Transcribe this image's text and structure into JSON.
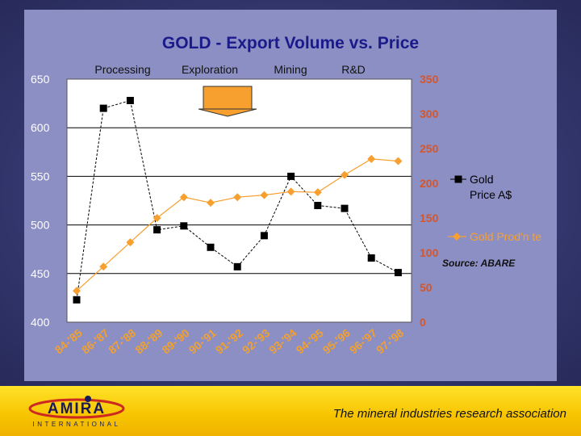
{
  "footer": {
    "tagline": "The mineral industries research association"
  },
  "logo": {
    "name": "AMIRA",
    "subtitle": "INTERNATIONAL"
  },
  "colors": {
    "gold_price": "#000000",
    "production": "#f7a030",
    "panel": "#8c8fc4",
    "arrow": "#f7a030"
  },
  "chart_data": {
    "type": "line",
    "title": "GOLD - Export Volume vs. Price",
    "categories": [
      "84-'85",
      "86-'87",
      "87-'88",
      "88-'89",
      "89-'90",
      "90-'91",
      "91-'92",
      "92-'93",
      "93-'94",
      "94-'95",
      "95-'96",
      "96-'97",
      "97-'98"
    ],
    "stage_labels": [
      "Processing",
      "Exploration",
      "Mining",
      "R&D"
    ],
    "source_note": "Source: ABARE",
    "y_left": {
      "ticks": [
        "400",
        "450",
        "500",
        "550",
        "600",
        "650"
      ],
      "range": [
        400,
        650
      ]
    },
    "y_right": {
      "ticks": [
        "0",
        "50",
        "100",
        "150",
        "200",
        "250",
        "300",
        "350"
      ],
      "range": [
        0,
        350
      ]
    },
    "series": [
      {
        "name": "Gold Price A$",
        "axis": "left",
        "marker": "square",
        "color": "#000000",
        "values": [
          423,
          620,
          628,
          495,
          499,
          477,
          457,
          489,
          550,
          520,
          517,
          466,
          451
        ]
      },
      {
        "name": "Gold Prod'n te",
        "axis": "right",
        "marker": "diamond",
        "color": "#f7a030",
        "values": [
          45,
          80,
          115,
          150,
          180,
          172,
          180,
          183,
          188,
          187,
          212,
          235,
          232
        ]
      }
    ]
  }
}
